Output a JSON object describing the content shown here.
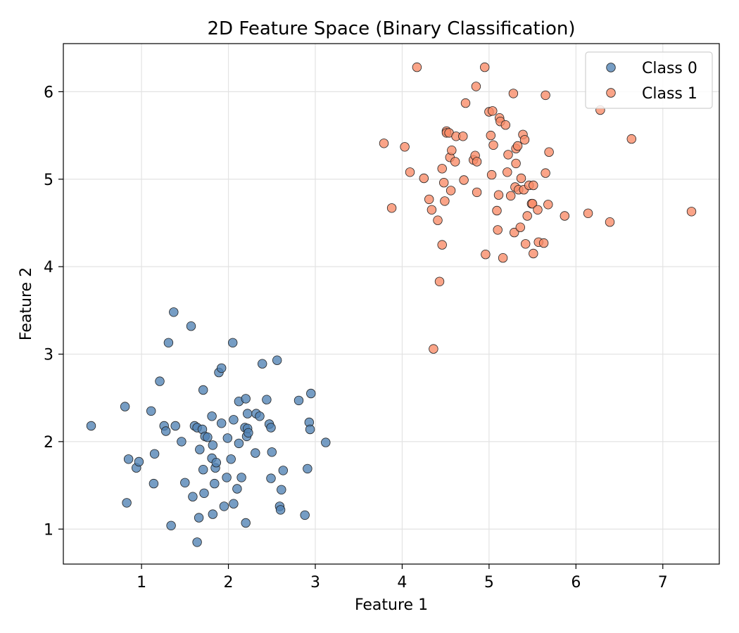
{
  "chart_data": {
    "type": "scatter",
    "title": "2D Feature Space (Binary Classification)",
    "xlabel": "Feature 1",
    "ylabel": "Feature 2",
    "xlim": [
      0.1,
      7.65
    ],
    "ylim": [
      0.6,
      6.55
    ],
    "xticks": [
      1,
      2,
      3,
      4,
      5,
      6,
      7
    ],
    "yticks": [
      1,
      2,
      3,
      4,
      5,
      6
    ],
    "grid": true,
    "legend_position": "top-right",
    "series": [
      {
        "name": "Class 0",
        "color": "#4f81b3",
        "points": [
          [
            0.42,
            2.18
          ],
          [
            0.81,
            2.4
          ],
          [
            0.83,
            1.3
          ],
          [
            0.85,
            1.8
          ],
          [
            0.94,
            1.7
          ],
          [
            0.97,
            1.77
          ],
          [
            1.11,
            2.35
          ],
          [
            1.14,
            1.52
          ],
          [
            1.15,
            1.86
          ],
          [
            1.21,
            2.69
          ],
          [
            1.26,
            2.18
          ],
          [
            1.28,
            2.12
          ],
          [
            1.31,
            3.13
          ],
          [
            1.34,
            1.04
          ],
          [
            1.37,
            3.48
          ],
          [
            1.39,
            2.18
          ],
          [
            1.46,
            2.0
          ],
          [
            1.5,
            1.53
          ],
          [
            1.57,
            3.32
          ],
          [
            1.59,
            1.37
          ],
          [
            1.61,
            2.18
          ],
          [
            1.64,
            2.16
          ],
          [
            1.64,
            0.85
          ],
          [
            1.66,
            1.13
          ],
          [
            1.67,
            1.91
          ],
          [
            1.7,
            2.14
          ],
          [
            1.71,
            1.68
          ],
          [
            1.71,
            2.59
          ],
          [
            1.72,
            1.41
          ],
          [
            1.73,
            2.06
          ],
          [
            1.76,
            2.05
          ],
          [
            1.81,
            2.29
          ],
          [
            1.81,
            1.81
          ],
          [
            1.82,
            1.96
          ],
          [
            1.82,
            1.17
          ],
          [
            1.84,
            1.52
          ],
          [
            1.85,
            1.7
          ],
          [
            1.86,
            1.76
          ],
          [
            1.89,
            2.79
          ],
          [
            1.92,
            2.84
          ],
          [
            1.92,
            2.21
          ],
          [
            1.95,
            1.26
          ],
          [
            1.98,
            1.59
          ],
          [
            1.99,
            2.04
          ],
          [
            2.03,
            1.8
          ],
          [
            2.05,
            3.13
          ],
          [
            2.06,
            1.29
          ],
          [
            2.06,
            2.25
          ],
          [
            2.1,
            1.46
          ],
          [
            2.12,
            2.46
          ],
          [
            2.12,
            1.98
          ],
          [
            2.15,
            1.59
          ],
          [
            2.19,
            2.16
          ],
          [
            2.2,
            2.49
          ],
          [
            2.2,
            1.07
          ],
          [
            2.21,
            2.06
          ],
          [
            2.22,
            2.15
          ],
          [
            2.22,
            2.32
          ],
          [
            2.23,
            2.1
          ],
          [
            2.31,
            1.87
          ],
          [
            2.32,
            2.32
          ],
          [
            2.36,
            2.29
          ],
          [
            2.39,
            2.89
          ],
          [
            2.44,
            2.48
          ],
          [
            2.47,
            2.2
          ],
          [
            2.49,
            2.16
          ],
          [
            2.49,
            1.58
          ],
          [
            2.5,
            1.88
          ],
          [
            2.56,
            2.93
          ],
          [
            2.59,
            1.26
          ],
          [
            2.6,
            1.22
          ],
          [
            2.61,
            1.45
          ],
          [
            2.63,
            1.67
          ],
          [
            2.81,
            2.47
          ],
          [
            2.88,
            1.16
          ],
          [
            2.91,
            1.69
          ],
          [
            2.93,
            2.22
          ],
          [
            2.94,
            2.14
          ],
          [
            2.95,
            2.55
          ],
          [
            3.12,
            1.99
          ]
        ]
      },
      {
        "name": "Class 1",
        "color": "#f98a66",
        "points": [
          [
            3.79,
            5.41
          ],
          [
            3.88,
            4.67
          ],
          [
            4.03,
            5.37
          ],
          [
            4.09,
            5.08
          ],
          [
            4.17,
            6.28
          ],
          [
            4.25,
            5.01
          ],
          [
            4.31,
            4.77
          ],
          [
            4.34,
            4.65
          ],
          [
            4.36,
            3.06
          ],
          [
            4.41,
            4.53
          ],
          [
            4.43,
            3.83
          ],
          [
            4.46,
            5.12
          ],
          [
            4.46,
            4.25
          ],
          [
            4.48,
            4.96
          ],
          [
            4.49,
            4.75
          ],
          [
            4.51,
            5.55
          ],
          [
            4.51,
            5.53
          ],
          [
            4.54,
            5.53
          ],
          [
            4.55,
            5.25
          ],
          [
            4.56,
            4.87
          ],
          [
            4.57,
            5.33
          ],
          [
            4.61,
            5.2
          ],
          [
            4.62,
            5.49
          ],
          [
            4.7,
            5.49
          ],
          [
            4.71,
            4.99
          ],
          [
            4.73,
            5.87
          ],
          [
            4.82,
            5.22
          ],
          [
            4.84,
            5.27
          ],
          [
            4.85,
            6.06
          ],
          [
            4.86,
            5.2
          ],
          [
            4.86,
            4.85
          ],
          [
            4.95,
            6.28
          ],
          [
            4.96,
            4.14
          ],
          [
            5.0,
            5.77
          ],
          [
            5.02,
            5.5
          ],
          [
            5.03,
            5.05
          ],
          [
            5.04,
            5.78
          ],
          [
            5.05,
            5.39
          ],
          [
            5.09,
            4.64
          ],
          [
            5.1,
            4.42
          ],
          [
            5.11,
            4.82
          ],
          [
            5.12,
            5.7
          ],
          [
            5.13,
            5.66
          ],
          [
            5.16,
            4.1
          ],
          [
            5.19,
            5.62
          ],
          [
            5.21,
            5.08
          ],
          [
            5.22,
            5.28
          ],
          [
            5.25,
            4.81
          ],
          [
            5.28,
            5.98
          ],
          [
            5.29,
            4.39
          ],
          [
            5.3,
            4.91
          ],
          [
            5.31,
            5.35
          ],
          [
            5.31,
            5.18
          ],
          [
            5.33,
            5.38
          ],
          [
            5.34,
            4.88
          ],
          [
            5.36,
            4.45
          ],
          [
            5.37,
            5.01
          ],
          [
            5.39,
            5.51
          ],
          [
            5.4,
            4.88
          ],
          [
            5.41,
            5.45
          ],
          [
            5.42,
            4.26
          ],
          [
            5.44,
            4.58
          ],
          [
            5.46,
            4.93
          ],
          [
            5.49,
            4.72
          ],
          [
            5.5,
            4.72
          ],
          [
            5.51,
            4.93
          ],
          [
            5.51,
            4.15
          ],
          [
            5.56,
            4.65
          ],
          [
            5.57,
            4.28
          ],
          [
            5.63,
            4.27
          ],
          [
            5.65,
            5.96
          ],
          [
            5.65,
            5.07
          ],
          [
            5.68,
            4.71
          ],
          [
            5.69,
            5.31
          ],
          [
            5.87,
            4.58
          ],
          [
            6.14,
            4.61
          ],
          [
            6.28,
            5.79
          ],
          [
            6.39,
            4.51
          ],
          [
            6.64,
            5.46
          ],
          [
            7.33,
            4.63
          ]
        ]
      }
    ]
  }
}
